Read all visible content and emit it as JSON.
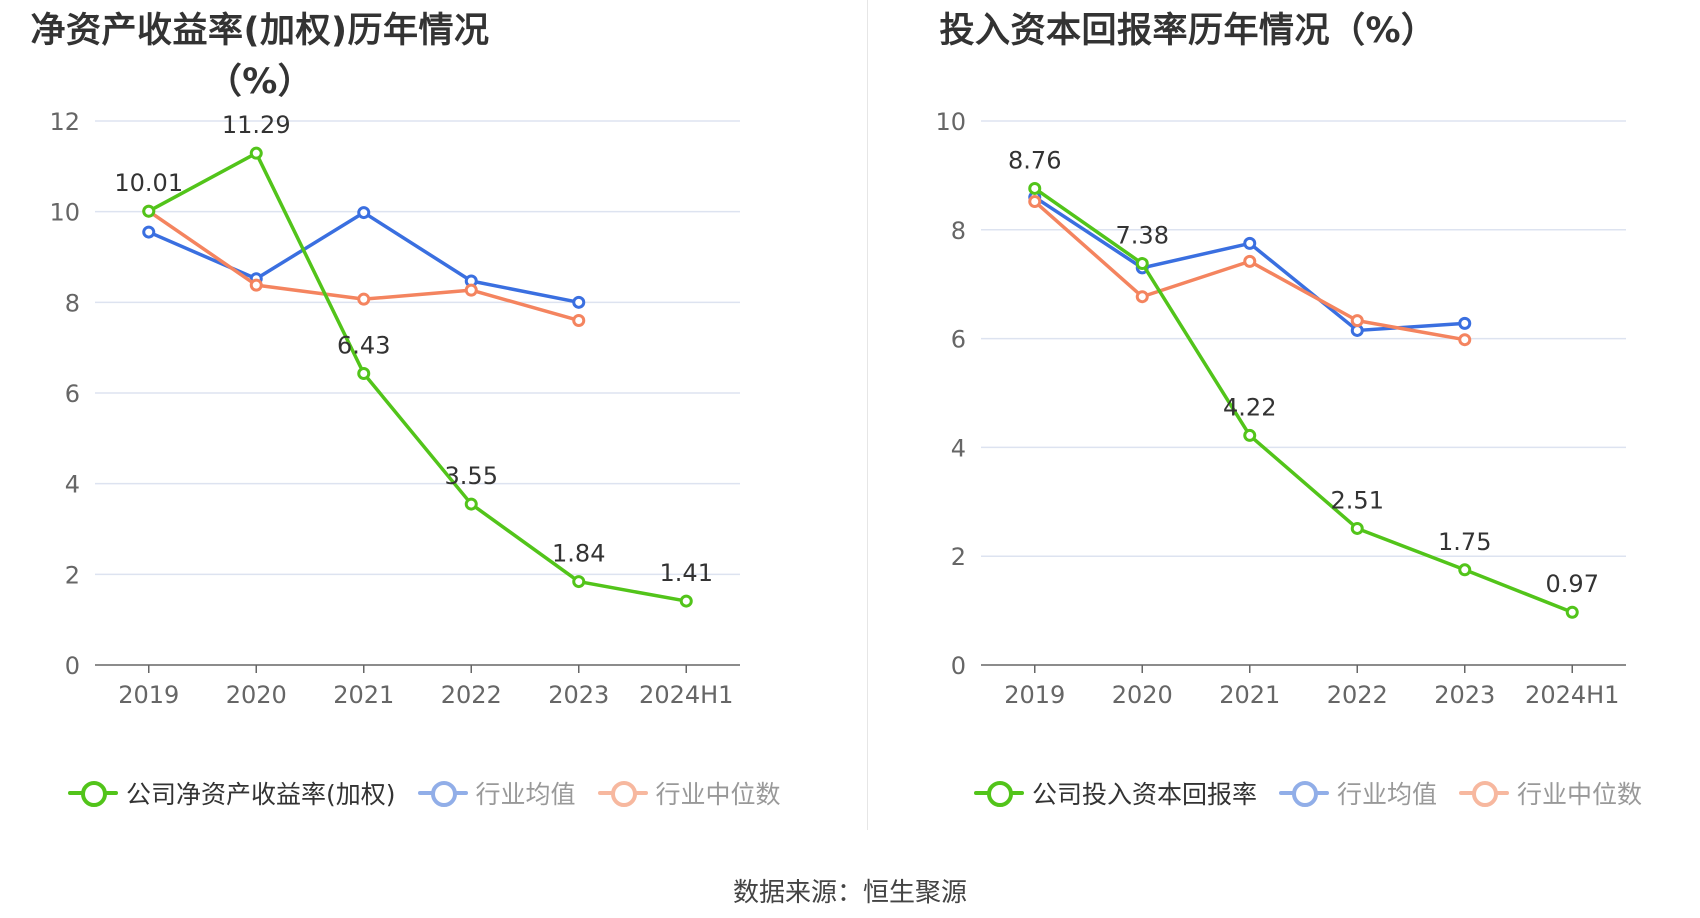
{
  "source_label": "数据来源：恒生聚源",
  "colors": {
    "company": "#52c41a",
    "average": "#3a6fe0",
    "median": "#f4845f",
    "average_legend": "#91aee8",
    "median_legend": "#f7b89f"
  },
  "chart_data": [
    {
      "type": "line",
      "title": "净资产收益率(加权)历年情况（%）",
      "categories": [
        "2019",
        "2020",
        "2021",
        "2022",
        "2023",
        "2024H1"
      ],
      "ylim": [
        0,
        12
      ],
      "yticks": [
        0,
        2,
        4,
        6,
        8,
        10,
        12
      ],
      "grid": true,
      "legend_position": "bottom",
      "series": [
        {
          "name": "公司净资产收益率(加权)",
          "key": "company",
          "values": [
            10.01,
            11.29,
            6.43,
            3.55,
            1.84,
            1.41
          ],
          "labels": [
            "10.01",
            "11.29",
            "6.43",
            "3.55",
            "1.84",
            "1.41"
          ]
        },
        {
          "name": "行业均值",
          "key": "average",
          "values": [
            9.55,
            8.52,
            9.98,
            8.47,
            8.0,
            null
          ]
        },
        {
          "name": "行业中位数",
          "key": "median",
          "values": [
            10.01,
            8.38,
            8.07,
            8.27,
            7.6,
            null
          ]
        }
      ]
    },
    {
      "type": "line",
      "title": "投入资本回报率历年情况（%）",
      "categories": [
        "2019",
        "2020",
        "2021",
        "2022",
        "2023",
        "2024H1"
      ],
      "ylim": [
        0,
        10
      ],
      "yticks": [
        0,
        2,
        4,
        6,
        8,
        10
      ],
      "grid": true,
      "legend_position": "bottom",
      "series": [
        {
          "name": "公司投入资本回报率",
          "key": "company",
          "values": [
            8.76,
            7.38,
            4.22,
            2.51,
            1.75,
            0.97
          ],
          "labels": [
            "8.76",
            "7.38",
            "4.22",
            "2.51",
            "1.75",
            "0.97"
          ]
        },
        {
          "name": "行业均值",
          "key": "average",
          "values": [
            8.6,
            7.3,
            7.75,
            6.15,
            6.28,
            null
          ]
        },
        {
          "name": "行业中位数",
          "key": "median",
          "values": [
            8.52,
            6.77,
            7.42,
            6.33,
            5.98,
            null
          ]
        }
      ]
    }
  ]
}
